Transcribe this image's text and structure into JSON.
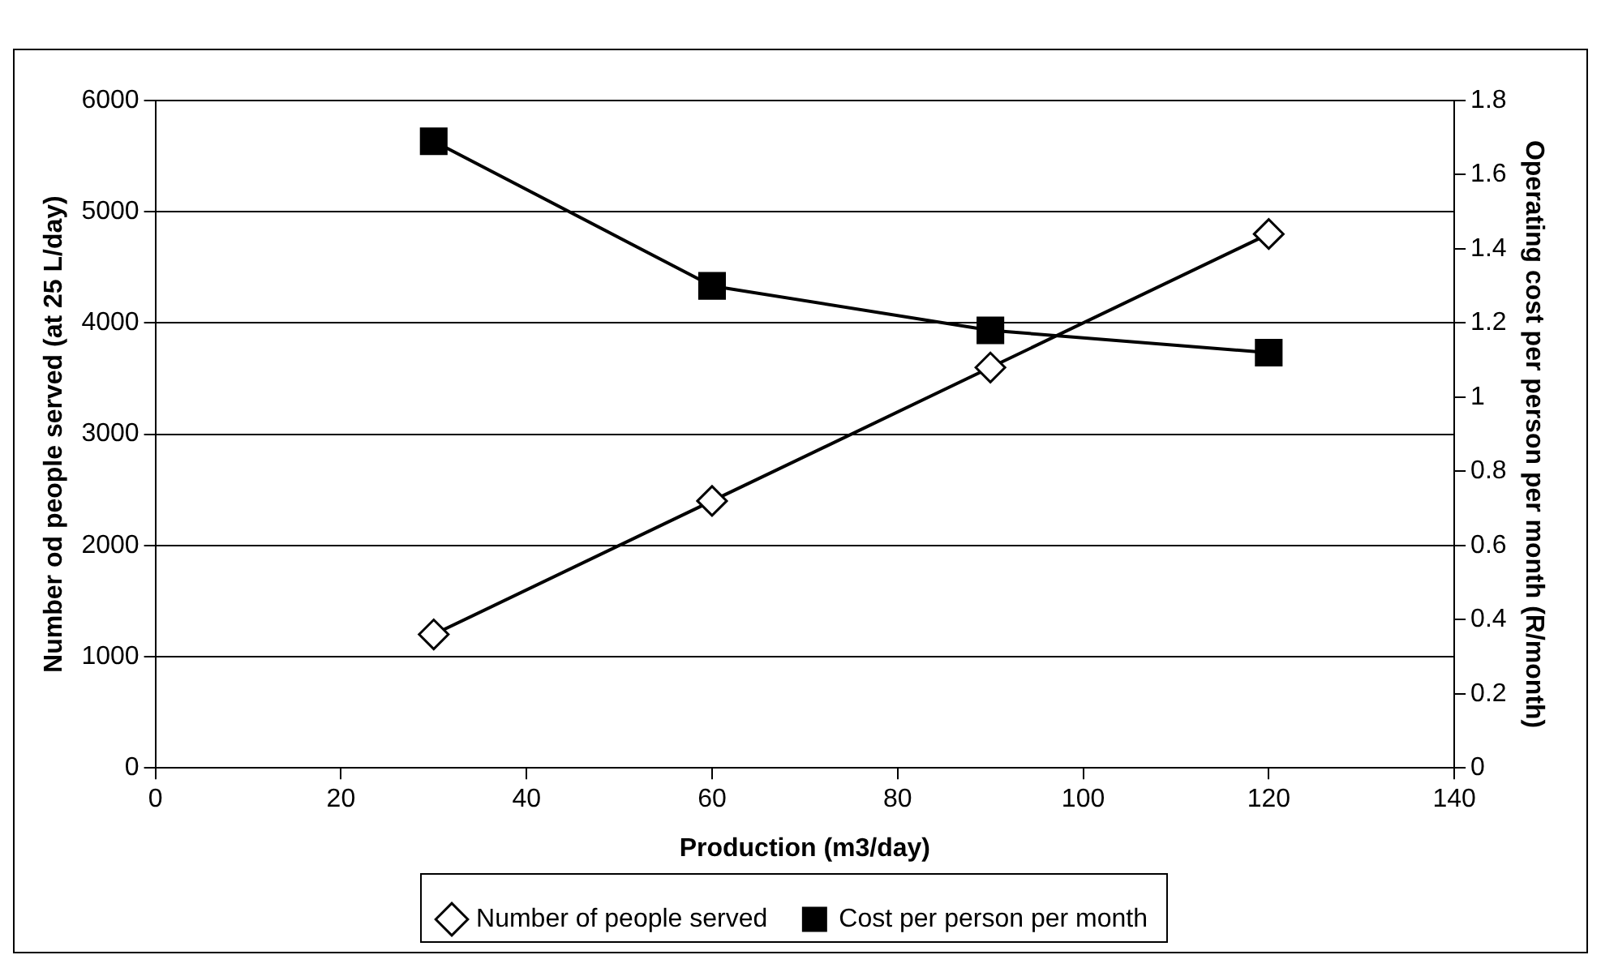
{
  "chart_data": {
    "type": "line",
    "xlabel": "Production (m3/day)",
    "ylabel": "Number od people served (at 25 L/day)",
    "y2label": "Operating cost per person per month (R/month)",
    "x": [
      30,
      60,
      90,
      120
    ],
    "series": [
      {
        "name": "Number of people served",
        "color": "#000000",
        "values": [
          1200,
          2400,
          3600,
          4800
        ],
        "marker": "diamond"
      },
      {
        "name": "Cost per person per month",
        "color": "#000000",
        "values": [
          1.69,
          1.3,
          1.18,
          1.12
        ],
        "axis": "y2",
        "marker": "square"
      }
    ],
    "xlim": [
      0,
      140
    ],
    "xticks": [
      0,
      20,
      40,
      60,
      80,
      100,
      120,
      140
    ],
    "ylim": [
      0,
      6000
    ],
    "yticks": [
      0,
      1000,
      2000,
      3000,
      4000,
      5000,
      6000
    ],
    "y2lim": [
      0,
      1.8
    ],
    "y2ticks": [
      0,
      0.2,
      0.4,
      0.6,
      0.8,
      1,
      1.2,
      1.4,
      1.6,
      1.8
    ],
    "grid": "y",
    "legend": "bottom",
    "line_style": "solid"
  }
}
